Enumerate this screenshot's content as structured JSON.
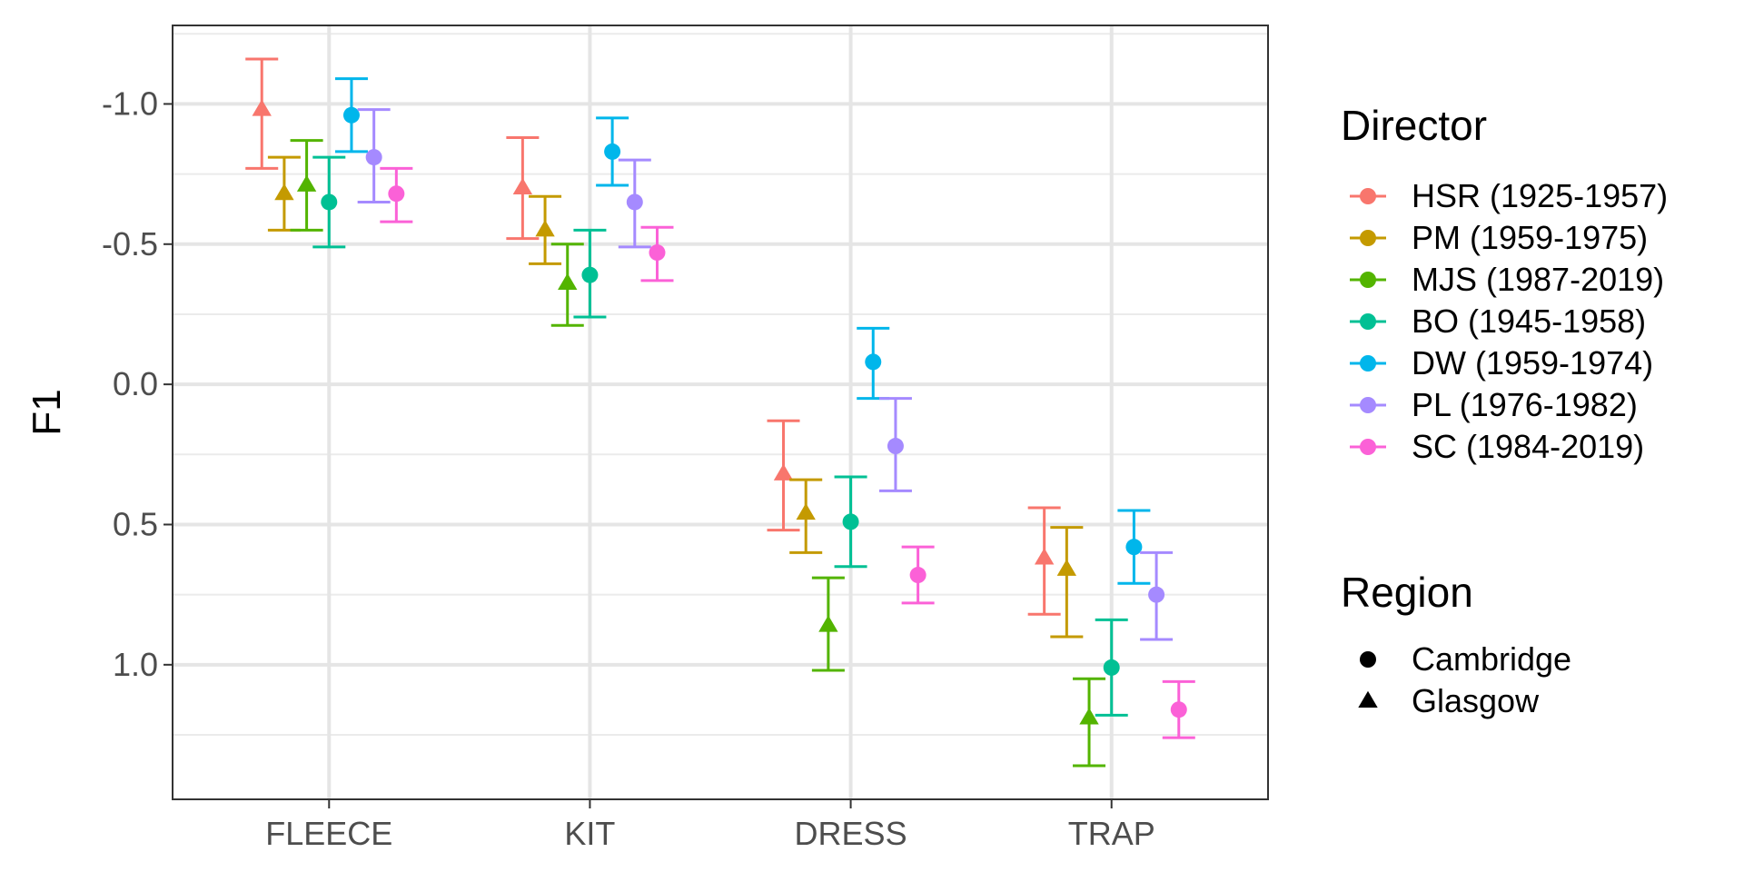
{
  "chart_data": {
    "type": "scatter",
    "title": "",
    "xlabel": "",
    "ylabel": "F1",
    "y_reversed": true,
    "ylim": [
      -1.28,
      1.48
    ],
    "y_ticks": [
      -1.0,
      -0.5,
      0.0,
      0.5,
      1.0
    ],
    "y_tick_labels": [
      "-1.0",
      "-0.5",
      "0.0",
      "0.5",
      "1.0"
    ],
    "categories": [
      "FLEECE",
      "KIT",
      "DRESS",
      "TRAP"
    ],
    "grid": true,
    "legend_position": "right",
    "director_legend": {
      "title": "Director",
      "entries": [
        {
          "label": "HSR (1925-1957)",
          "color": "#F8766D"
        },
        {
          "label": "PM (1959-1975)",
          "color": "#C49A00"
        },
        {
          "label": "MJS (1987-2019)",
          "color": "#53B400"
        },
        {
          "label": "BO (1945-1958)",
          "color": "#00C094"
        },
        {
          "label": "DW (1959-1974)",
          "color": "#00B6EB"
        },
        {
          "label": "PL (1976-1982)",
          "color": "#A58AFF"
        },
        {
          "label": "SC (1984-2019)",
          "color": "#FB61D7"
        }
      ]
    },
    "region_legend": {
      "title": "Region",
      "entries": [
        {
          "label": "Cambridge",
          "shape": "circle"
        },
        {
          "label": "Glasgow",
          "shape": "triangle"
        }
      ]
    },
    "series": [
      {
        "director": "HSR (1925-1957)",
        "region": "Glasgow",
        "values": [
          -0.98,
          -0.7,
          0.32,
          0.62
        ],
        "lower": [
          -1.16,
          -0.88,
          0.13,
          0.44
        ],
        "upper": [
          -0.77,
          -0.52,
          0.52,
          0.82
        ]
      },
      {
        "director": "PM (1959-1975)",
        "region": "Glasgow",
        "values": [
          -0.68,
          -0.55,
          0.46,
          0.66
        ],
        "lower": [
          -0.81,
          -0.67,
          0.34,
          0.51
        ],
        "upper": [
          -0.55,
          -0.43,
          0.6,
          0.9
        ]
      },
      {
        "director": "MJS (1987-2019)",
        "region": "Glasgow",
        "values": [
          -0.71,
          -0.36,
          0.86,
          1.19
        ],
        "lower": [
          -0.87,
          -0.5,
          0.69,
          1.05
        ],
        "upper": [
          -0.55,
          -0.21,
          1.02,
          1.36
        ]
      },
      {
        "director": "BO (1945-1958)",
        "region": "Cambridge",
        "values": [
          -0.65,
          -0.39,
          0.49,
          1.01
        ],
        "lower": [
          -0.81,
          -0.55,
          0.33,
          0.84
        ],
        "upper": [
          -0.49,
          -0.24,
          0.65,
          1.18
        ]
      },
      {
        "director": "DW (1959-1974)",
        "region": "Cambridge",
        "values": [
          -0.96,
          -0.83,
          -0.08,
          0.58
        ],
        "lower": [
          -1.09,
          -0.95,
          -0.2,
          0.45
        ],
        "upper": [
          -0.83,
          -0.71,
          0.05,
          0.71
        ]
      },
      {
        "director": "PL (1976-1982)",
        "region": "Cambridge",
        "values": [
          -0.81,
          -0.65,
          0.22,
          0.75
        ],
        "lower": [
          -0.98,
          -0.8,
          0.05,
          0.6
        ],
        "upper": [
          -0.65,
          -0.49,
          0.38,
          0.91
        ]
      },
      {
        "director": "SC (1984-2019)",
        "region": "Cambridge",
        "values": [
          -0.68,
          -0.47,
          0.68,
          1.16
        ],
        "lower": [
          -0.77,
          -0.56,
          0.58,
          1.06
        ],
        "upper": [
          -0.58,
          -0.37,
          0.78,
          1.26
        ]
      }
    ]
  }
}
